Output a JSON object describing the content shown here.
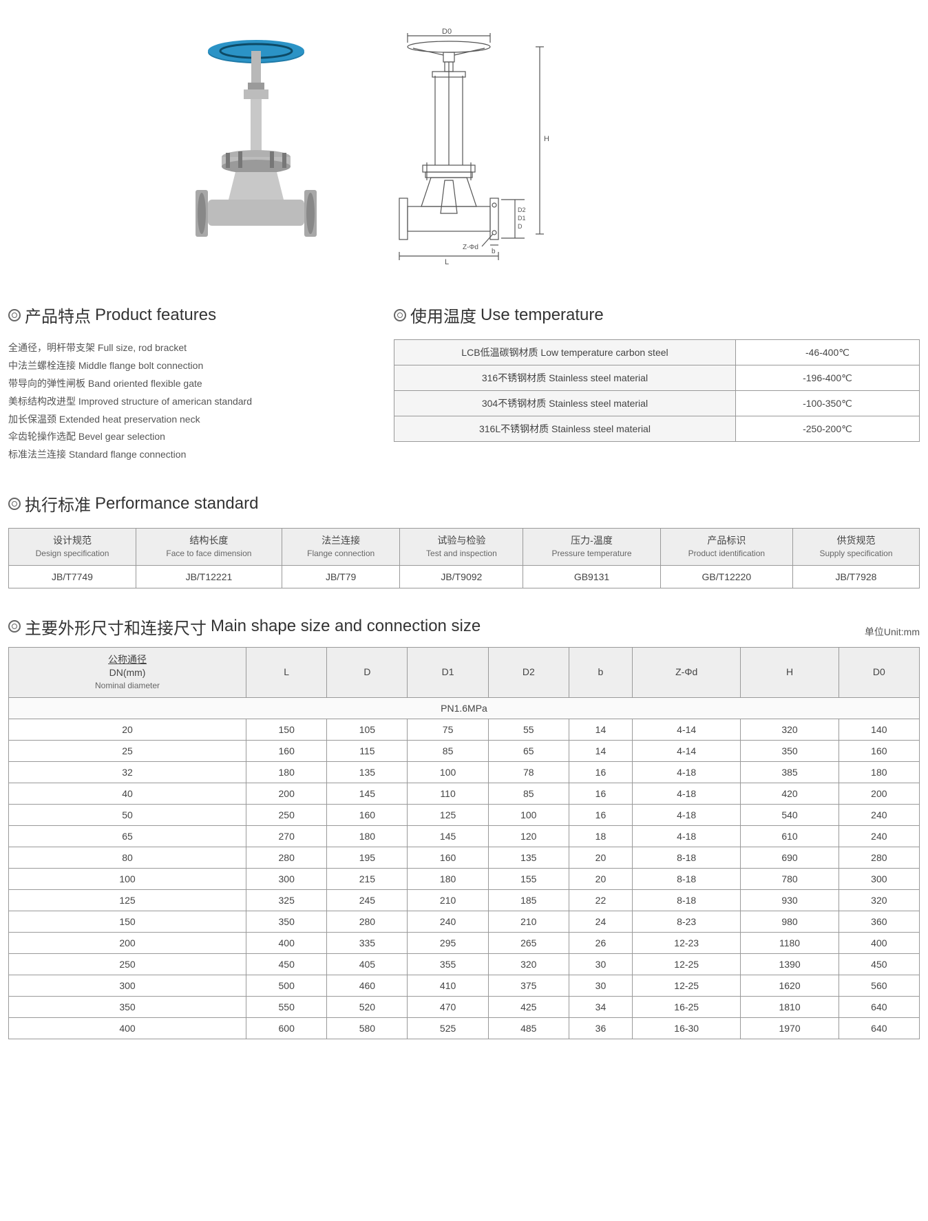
{
  "colors": {
    "text": "#333333",
    "muted": "#555555",
    "border": "#999999",
    "header_bg": "#eeeeee",
    "alt_bg": "#f5f5f5",
    "wheel": "#1e7aa8",
    "metal_light": "#d8d8d8",
    "metal_dark": "#9a9a9a",
    "drawing_stroke": "#555555"
  },
  "product_features": {
    "title_cn": "产品特点",
    "title_en": "Product features",
    "items": [
      {
        "cn": "全通径，明杆带支架",
        "en": "Full size, rod bracket"
      },
      {
        "cn": "中法兰螺栓连接",
        "en": "Middle flange bolt connection"
      },
      {
        "cn": "带导向的弹性闸板",
        "en": "Band oriented flexible gate"
      },
      {
        "cn": "美标结构改进型",
        "en": "Improved structure of american standard"
      },
      {
        "cn": "加长保温颈",
        "en": "Extended heat preservation neck"
      },
      {
        "cn": "伞齿轮操作选配",
        "en": "Bevel gear selection"
      },
      {
        "cn": "标准法兰连接",
        "en": "Standard flange connection"
      }
    ]
  },
  "use_temperature": {
    "title_cn": "使用温度",
    "title_en": "Use temperature",
    "rows": [
      {
        "material": "LCB低温碳钢材质 Low temperature carbon steel",
        "range": "-46-400℃"
      },
      {
        "material": "316不锈钢材质 Stainless steel material",
        "range": "-196-400℃"
      },
      {
        "material": "304不锈钢材质 Stainless steel material",
        "range": "-100-350℃"
      },
      {
        "material": "316L不锈钢材质 Stainless steel material",
        "range": "-250-200℃"
      }
    ]
  },
  "performance_standard": {
    "title_cn": "执行标准",
    "title_en": "Performance standard",
    "columns": [
      {
        "cn": "设计规范",
        "en": "Design specification"
      },
      {
        "cn": "结构长度",
        "en": "Face to face dimension"
      },
      {
        "cn": "法兰连接",
        "en": "Flange connection"
      },
      {
        "cn": "试验与检验",
        "en": "Test and inspection"
      },
      {
        "cn": "压力-温度",
        "en": "Pressure temperature"
      },
      {
        "cn": "产品标识",
        "en": "Product identification"
      },
      {
        "cn": "供货规范",
        "en": "Supply specification"
      }
    ],
    "values": [
      "JB/T7749",
      "JB/T12221",
      "JB/T79",
      "JB/T9092",
      "GB9131",
      "GB/T12220",
      "JB/T7928"
    ]
  },
  "size_table": {
    "title_cn": "主要外形尺寸和连接尺寸",
    "title_en": "Main shape size and connection size",
    "unit_label": "单位Unit:mm",
    "columns": [
      {
        "cn": "公称通径",
        "sub": "DN(mm)",
        "en": "Nominal diameter"
      },
      {
        "label": "L"
      },
      {
        "label": "D"
      },
      {
        "label": "D1"
      },
      {
        "label": "D2"
      },
      {
        "label": "b"
      },
      {
        "label": "Z-Φd"
      },
      {
        "label": "H"
      },
      {
        "label": "D0"
      }
    ],
    "pressure_row": "PN1.6MPa",
    "rows": [
      [
        "20",
        "150",
        "105",
        "75",
        "55",
        "14",
        "4-14",
        "320",
        "140"
      ],
      [
        "25",
        "160",
        "115",
        "85",
        "65",
        "14",
        "4-14",
        "350",
        "160"
      ],
      [
        "32",
        "180",
        "135",
        "100",
        "78",
        "16",
        "4-18",
        "385",
        "180"
      ],
      [
        "40",
        "200",
        "145",
        "110",
        "85",
        "16",
        "4-18",
        "420",
        "200"
      ],
      [
        "50",
        "250",
        "160",
        "125",
        "100",
        "16",
        "4-18",
        "540",
        "240"
      ],
      [
        "65",
        "270",
        "180",
        "145",
        "120",
        "18",
        "4-18",
        "610",
        "240"
      ],
      [
        "80",
        "280",
        "195",
        "160",
        "135",
        "20",
        "8-18",
        "690",
        "280"
      ],
      [
        "100",
        "300",
        "215",
        "180",
        "155",
        "20",
        "8-18",
        "780",
        "300"
      ],
      [
        "125",
        "325",
        "245",
        "210",
        "185",
        "22",
        "8-18",
        "930",
        "320"
      ],
      [
        "150",
        "350",
        "280",
        "240",
        "210",
        "24",
        "8-23",
        "980",
        "360"
      ],
      [
        "200",
        "400",
        "335",
        "295",
        "265",
        "26",
        "12-23",
        "1180",
        "400"
      ],
      [
        "250",
        "450",
        "405",
        "355",
        "320",
        "30",
        "12-25",
        "1390",
        "450"
      ],
      [
        "300",
        "500",
        "460",
        "410",
        "375",
        "30",
        "12-25",
        "1620",
        "560"
      ],
      [
        "350",
        "550",
        "520",
        "470",
        "425",
        "34",
        "16-25",
        "1810",
        "640"
      ],
      [
        "400",
        "600",
        "580",
        "525",
        "485",
        "36",
        "16-30",
        "1970",
        "640"
      ]
    ]
  },
  "drawing_labels": {
    "D0": "D0",
    "H": "H",
    "D": "D",
    "D1": "D1",
    "D2": "D2",
    "Zphi": "Z-Φd",
    "L": "L",
    "b": "b"
  }
}
